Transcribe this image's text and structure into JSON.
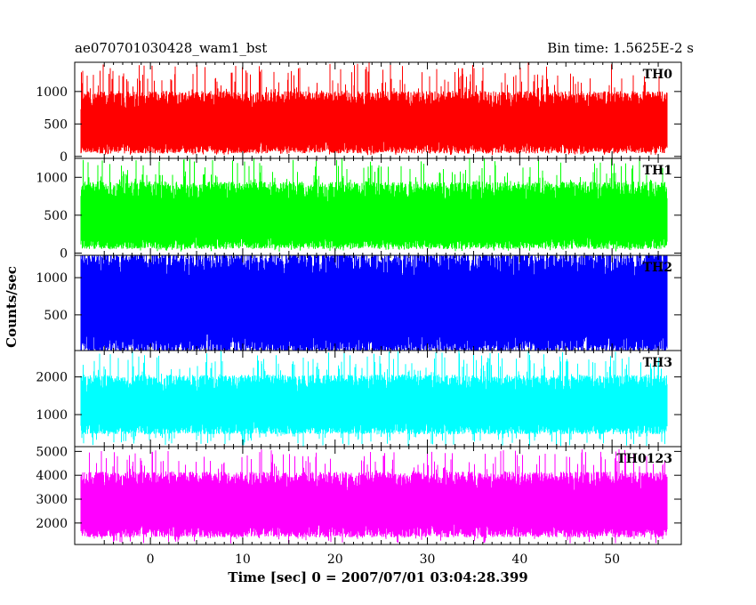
{
  "header": {
    "title": "ae070701030428_wam1_bst",
    "bin_time": "Bin time: 1.5625E-2 s"
  },
  "chart_data": {
    "type": "line",
    "xlabel": "Time [sec] 0 = 2007/07/01 03:04:28.399",
    "ylabel": "Counts/sec",
    "xlim": [
      -8.2,
      57.5
    ],
    "x_ticks": [
      "0",
      "10",
      "20",
      "30",
      "40",
      "50"
    ],
    "panels": [
      {
        "name": "TH0",
        "color": "#ff0000",
        "ylim": [
          -30,
          1450
        ],
        "y_ticks": [
          "0",
          "500",
          "1000"
        ],
        "x_start": -7.5,
        "x_end": 56.0,
        "typical_low": 150,
        "typical_high": 850,
        "min": 20,
        "max": 1450
      },
      {
        "name": "TH1",
        "color": "#00ff00",
        "ylim": [
          -30,
          1250
        ],
        "y_ticks": [
          "0",
          "500",
          "1000"
        ],
        "x_start": -7.5,
        "x_end": 56.0,
        "typical_low": 150,
        "typical_high": 800,
        "min": 20,
        "max": 1250
      },
      {
        "name": "TH2",
        "color": "#0000ff",
        "ylim": [
          20,
          1300
        ],
        "y_ticks": [
          "500",
          "1000"
        ],
        "x_start": -7.5,
        "x_end": 56.0,
        "typical_low": 120,
        "typical_high": 1150,
        "min": 20,
        "max": 1300
      },
      {
        "name": "TH3",
        "color": "#00ffff",
        "ylim": [
          150,
          2700
        ],
        "y_ticks": [
          "1000",
          "2000"
        ],
        "x_start": -7.5,
        "x_end": 56.0,
        "typical_low": 650,
        "typical_high": 1800,
        "min": 150,
        "max": 2700
      },
      {
        "name": "TH0123",
        "color": "#ff00ff",
        "ylim": [
          1100,
          5200
        ],
        "y_ticks": [
          "2000",
          "3000",
          "4000",
          "5000"
        ],
        "x_start": -7.5,
        "x_end": 56.0,
        "typical_low": 1700,
        "typical_high": 3700,
        "min": 1150,
        "max": 5100
      }
    ]
  }
}
